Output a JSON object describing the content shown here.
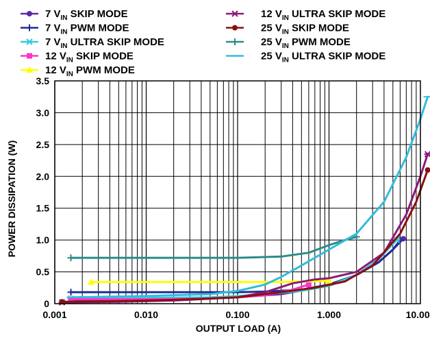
{
  "chart_data": {
    "type": "line",
    "title": "",
    "xlabel": "OUTPUT LOAD (A)",
    "ylabel": "POWER DISSIPATION (W)",
    "x_scale": "log",
    "xlim": [
      0.001,
      10
    ],
    "ylim": [
      0,
      3.5
    ],
    "grid": true,
    "legend_position": "top",
    "x_ticks": [
      {
        "value": 0.001,
        "label": "0.001"
      },
      {
        "value": 0.01,
        "label": "0.010"
      },
      {
        "value": 0.1,
        "label": "0.100"
      },
      {
        "value": 1,
        "label": "1.000"
      },
      {
        "value": 10,
        "label": "10.000"
      }
    ],
    "y_ticks": [
      {
        "value": 0,
        "label": "0"
      },
      {
        "value": 0.5,
        "label": "0.5"
      },
      {
        "value": 1,
        "label": "1.0"
      },
      {
        "value": 1.5,
        "label": "1.5"
      },
      {
        "value": 2,
        "label": "2.0"
      },
      {
        "value": 2.5,
        "label": "2.5"
      },
      {
        "value": 3,
        "label": "3.0"
      },
      {
        "value": 3.5,
        "label": "3.5"
      }
    ],
    "series": [
      {
        "name": "7 VIN SKIP MODE",
        "name_main": "7 V",
        "name_sub": "IN",
        "name_rest": " SKIP MODE",
        "color": "#5a2aa8",
        "marker": "circle",
        "x": [
          0.0015,
          0.005,
          0.02,
          0.1,
          0.3,
          1.0,
          2.0,
          3.5,
          5.0,
          6.5
        ],
        "y": [
          0.05,
          0.06,
          0.07,
          0.1,
          0.15,
          0.28,
          0.45,
          0.65,
          0.85,
          1.02
        ]
      },
      {
        "name": "7 VIN PWM MODE",
        "name_main": "7 V",
        "name_sub": "IN",
        "name_rest": " PWM MODE",
        "color": "#1f2d8f",
        "marker": "plus",
        "x": [
          0.0015,
          0.01,
          0.1,
          0.2,
          0.5,
          1.0,
          2.0,
          3.5,
          5.0,
          6.0
        ],
        "y": [
          0.18,
          0.18,
          0.18,
          0.19,
          0.22,
          0.3,
          0.45,
          0.65,
          0.85,
          1.0
        ]
      },
      {
        "name": "7 VIN ULTRA SKIP MODE",
        "name_main": "7 V",
        "name_sub": "IN",
        "name_rest": " ULTRA SKIP MODE",
        "color": "#33ccdd",
        "marker": "asterisk",
        "x": [
          0.0015,
          0.01,
          0.05,
          0.1,
          0.2,
          0.5,
          1.0,
          2.0,
          3.5,
          5.5
        ],
        "y": [
          0.08,
          0.09,
          0.1,
          0.12,
          0.15,
          0.2,
          0.28,
          0.45,
          0.7,
          1.0
        ]
      },
      {
        "name": "12 VIN SKIP MODE",
        "name_main": "12 V",
        "name_sub": "IN",
        "name_rest": " SKIP MODE",
        "color": "#ff33cc",
        "marker": "square",
        "x": [
          0.0015,
          0.01,
          0.05,
          0.1,
          0.2,
          0.4,
          0.6
        ],
        "y": [
          0.07,
          0.07,
          0.08,
          0.1,
          0.13,
          0.22,
          0.3
        ]
      },
      {
        "name": "12 VIN PWM MODE",
        "name_main": "12 V",
        "name_sub": "IN",
        "name_rest": " PWM MODE",
        "color": "#ffff00",
        "marker": "triangle",
        "x": [
          0.0025,
          0.01,
          0.1,
          0.3,
          0.6,
          1.0
        ],
        "y": [
          0.34,
          0.34,
          0.34,
          0.34,
          0.35,
          0.36
        ]
      },
      {
        "name": "12 VIN ULTRA SKIP MODE",
        "name_main": "12 V",
        "name_sub": "IN",
        "name_rest": " ULTRA SKIP MODE",
        "color": "#8a1a7a",
        "marker": "asterisk",
        "x": [
          0.0012,
          0.005,
          0.02,
          0.1,
          0.2,
          0.4,
          0.7,
          1.0,
          2.0,
          4.0,
          7.0,
          10.0,
          12.0
        ],
        "y": [
          0.02,
          0.03,
          0.05,
          0.1,
          0.18,
          0.32,
          0.38,
          0.4,
          0.5,
          0.8,
          1.4,
          2.0,
          2.35
        ]
      },
      {
        "name": "25 VIN SKIP MODE",
        "name_main": "25 V",
        "name_sub": "IN",
        "name_rest": " SKIP MODE",
        "color": "#8b1010",
        "marker": "circle",
        "x": [
          0.0012,
          0.005,
          0.02,
          0.1,
          0.3,
          0.7,
          1.5,
          3.0,
          6.0,
          9.0,
          12.0
        ],
        "y": [
          0.03,
          0.04,
          0.06,
          0.1,
          0.18,
          0.25,
          0.35,
          0.6,
          1.1,
          1.6,
          2.1
        ]
      },
      {
        "name": "25 VIN PWM MODE",
        "name_main": "25 V",
        "name_sub": "IN",
        "name_rest": " PWM MODE",
        "color": "#2b8a8a",
        "marker": "plus",
        "x": [
          0.0015,
          0.01,
          0.1,
          0.3,
          0.6,
          1.0,
          1.5,
          2.0
        ],
        "y": [
          0.72,
          0.72,
          0.72,
          0.74,
          0.8,
          0.92,
          1.0,
          1.05
        ]
      },
      {
        "name": "25 VIN ULTRA SKIP MODE",
        "name_main": "25 V",
        "name_sub": "IN",
        "name_rest": " ULTRA SKIP MODE",
        "color": "#33bbdd",
        "marker": "none",
        "x": [
          0.0015,
          0.01,
          0.05,
          0.1,
          0.2,
          0.3,
          0.5,
          1.0,
          2.0,
          4.0,
          7.0,
          10.0,
          12.0
        ],
        "y": [
          0.1,
          0.12,
          0.15,
          0.2,
          0.3,
          0.42,
          0.6,
          0.85,
          1.1,
          1.6,
          2.3,
          2.9,
          3.25
        ]
      }
    ]
  }
}
